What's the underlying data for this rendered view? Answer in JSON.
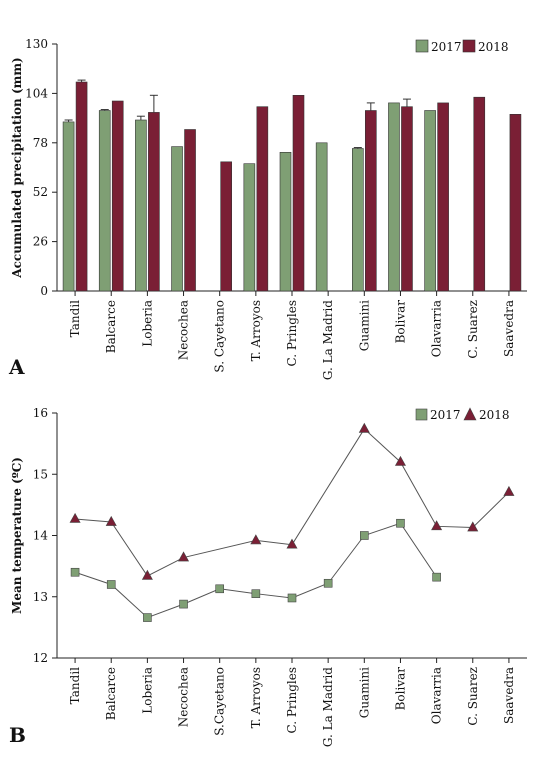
{
  "chart_data": [
    {
      "type": "bar",
      "panel_label": "A",
      "ylabel": "Accumulated precipitation (mm)",
      "ylim": [
        0,
        130
      ],
      "yticks": [
        "0",
        "26",
        "52",
        "78",
        "104",
        "130"
      ],
      "categories": [
        "Tandil",
        "Balcarce",
        "Loberia",
        "Necochea",
        "S. Cayetano",
        "T. Arroyos",
        "C. Pringles",
        "G. La Madrid",
        "Guamini",
        "Bolivar",
        "Olavarria",
        "C. Suarez",
        "Saavedra"
      ],
      "legend_position": "top-right",
      "series": [
        {
          "name": "2017",
          "color": "#7f9f74",
          "values": [
            89,
            95,
            90,
            76,
            null,
            67,
            73,
            78,
            75,
            99,
            95,
            null,
            null
          ],
          "errors": [
            1,
            0.5,
            2,
            null,
            null,
            null,
            null,
            null,
            0.5,
            null,
            null,
            null,
            null
          ]
        },
        {
          "name": "2018",
          "color": "#7a1f35",
          "values": [
            110,
            100,
            94,
            85,
            68,
            97,
            103,
            null,
            95,
            97,
            99,
            102,
            93
          ],
          "errors": [
            1,
            null,
            9,
            null,
            null,
            null,
            null,
            null,
            4,
            4,
            null,
            null,
            null
          ]
        }
      ]
    },
    {
      "type": "line",
      "panel_label": "B",
      "ylabel": "Mean temperature (ºC)",
      "ylim": [
        12,
        16
      ],
      "yticks": [
        "12",
        "13",
        "14",
        "15",
        "16"
      ],
      "categories": [
        "Tandil",
        "Balcarce",
        "Loberia",
        "Necochea",
        "S.Cayetano",
        "T. Arroyos",
        "C. Pringles",
        "G. La Madrid",
        "Guamini",
        "Bolivar",
        "Olavarria",
        "C. Suarez",
        "Saavedra"
      ],
      "legend_position": "top-right",
      "series": [
        {
          "name": "2017",
          "marker": "square",
          "color": "#7f9f74",
          "values": [
            13.4,
            13.2,
            12.66,
            12.88,
            13.13,
            13.05,
            12.98,
            13.22,
            14.0,
            14.2,
            13.32,
            null,
            null
          ]
        },
        {
          "name": "2018",
          "marker": "triangle",
          "color": "#7a1f35",
          "values": [
            14.27,
            14.22,
            13.34,
            13.64,
            null,
            13.92,
            13.85,
            null,
            15.74,
            15.2,
            14.15,
            14.13,
            14.71
          ]
        }
      ]
    }
  ]
}
